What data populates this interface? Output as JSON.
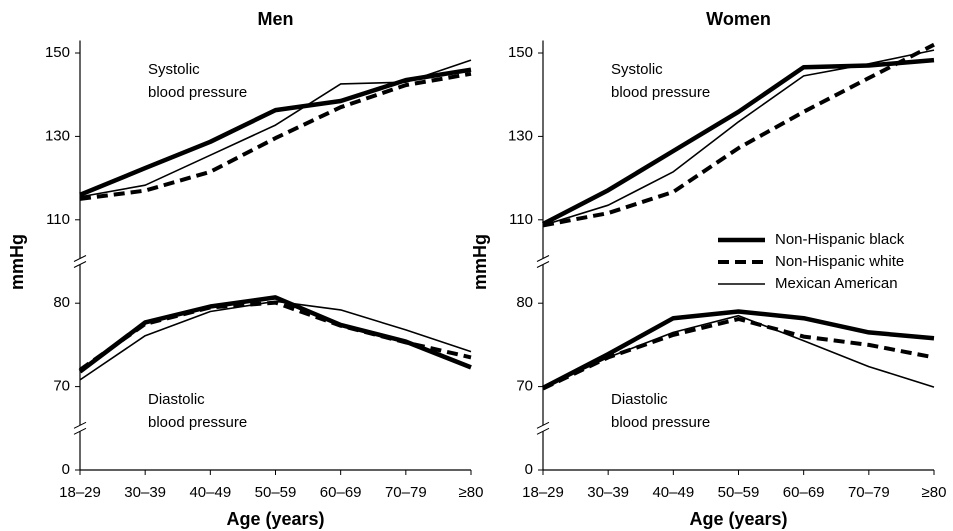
{
  "chart_data": [
    {
      "type": "line",
      "title": "Men",
      "xlabel": "Age (years)",
      "ylabel": "mmHg",
      "categories": [
        "18–29",
        "30–39",
        "40–49",
        "50–59",
        "60–69",
        "70–79",
        "≥80"
      ],
      "ylim": [
        0,
        153
      ],
      "yticks": [
        0,
        70,
        80,
        110,
        130,
        150
      ],
      "ybreaks": [
        [
          70,
          0
        ],
        [
          110,
          80
        ]
      ],
      "annotations": {
        "systolic": [
          "Systolic",
          "blood pressure"
        ],
        "diastolic": [
          "Diastolic",
          "blood pressure"
        ]
      },
      "legend": false,
      "series": [
        {
          "name": "Non-Hispanic black",
          "color": "#000000",
          "style": "thick",
          "systolic": [
            116,
            122.4,
            128.7,
            136.3,
            138.5,
            143.5,
            146
          ],
          "diastolic": [
            71.8,
            77.7,
            79.6,
            82.1,
            77.4,
            75.4,
            72.3
          ]
        },
        {
          "name": "Non-Hispanic white",
          "color": "#000000",
          "style": "dashed",
          "systolic": [
            115,
            117,
            121.5,
            129.6,
            137,
            142.3,
            145
          ],
          "diastolic": [
            72,
            77.5,
            79.5,
            80.2,
            77.3,
            75.3,
            73.5
          ]
        },
        {
          "name": "Mexican American",
          "color": "#000000",
          "style": "thin",
          "systolic": [
            115.5,
            118.3,
            125.5,
            132.7,
            142.6,
            143,
            148.3
          ],
          "diastolic": [
            70.8,
            76.1,
            79,
            80.7,
            79.2,
            76.8,
            74.2
          ]
        }
      ]
    },
    {
      "type": "line",
      "title": "Women",
      "xlabel": "Age (years)",
      "ylabel": "mmHg",
      "categories": [
        "18–29",
        "30–39",
        "40–49",
        "50–59",
        "60–69",
        "70–79",
        "≥80"
      ],
      "ylim": [
        0,
        153
      ],
      "yticks": [
        0,
        70,
        80,
        110,
        130,
        150
      ],
      "ybreaks": [
        [
          70,
          0
        ],
        [
          110,
          80
        ]
      ],
      "annotations": {
        "systolic": [
          "Systolic",
          "blood pressure"
        ],
        "diastolic": [
          "Diastolic",
          "blood pressure"
        ]
      },
      "legend": true,
      "series": [
        {
          "name": "Non-Hispanic black",
          "color": "#000000",
          "style": "thick",
          "systolic": [
            108.5,
            117.1,
            126.5,
            135.9,
            146.6,
            147,
            148.3
          ],
          "diastolic": [
            68.9,
            73.9,
            78.2,
            79,
            78.2,
            76.5,
            75.8
          ]
        },
        {
          "name": "Non-Hispanic white",
          "color": "#000000",
          "style": "dashed",
          "systolic": [
            108,
            111.6,
            116.7,
            127.2,
            135.9,
            144,
            152
          ],
          "diastolic": [
            68.3,
            73.5,
            76.2,
            78.1,
            76,
            75,
            73.5
          ]
        },
        {
          "name": "Mexican American",
          "color": "#000000",
          "style": "thin",
          "systolic": [
            108,
            113.5,
            121.5,
            133.5,
            144.5,
            147.4,
            150.7
          ],
          "diastolic": [
            68.5,
            73.5,
            76.5,
            78.5,
            75.5,
            72.4,
            69.6
          ]
        }
      ]
    }
  ]
}
